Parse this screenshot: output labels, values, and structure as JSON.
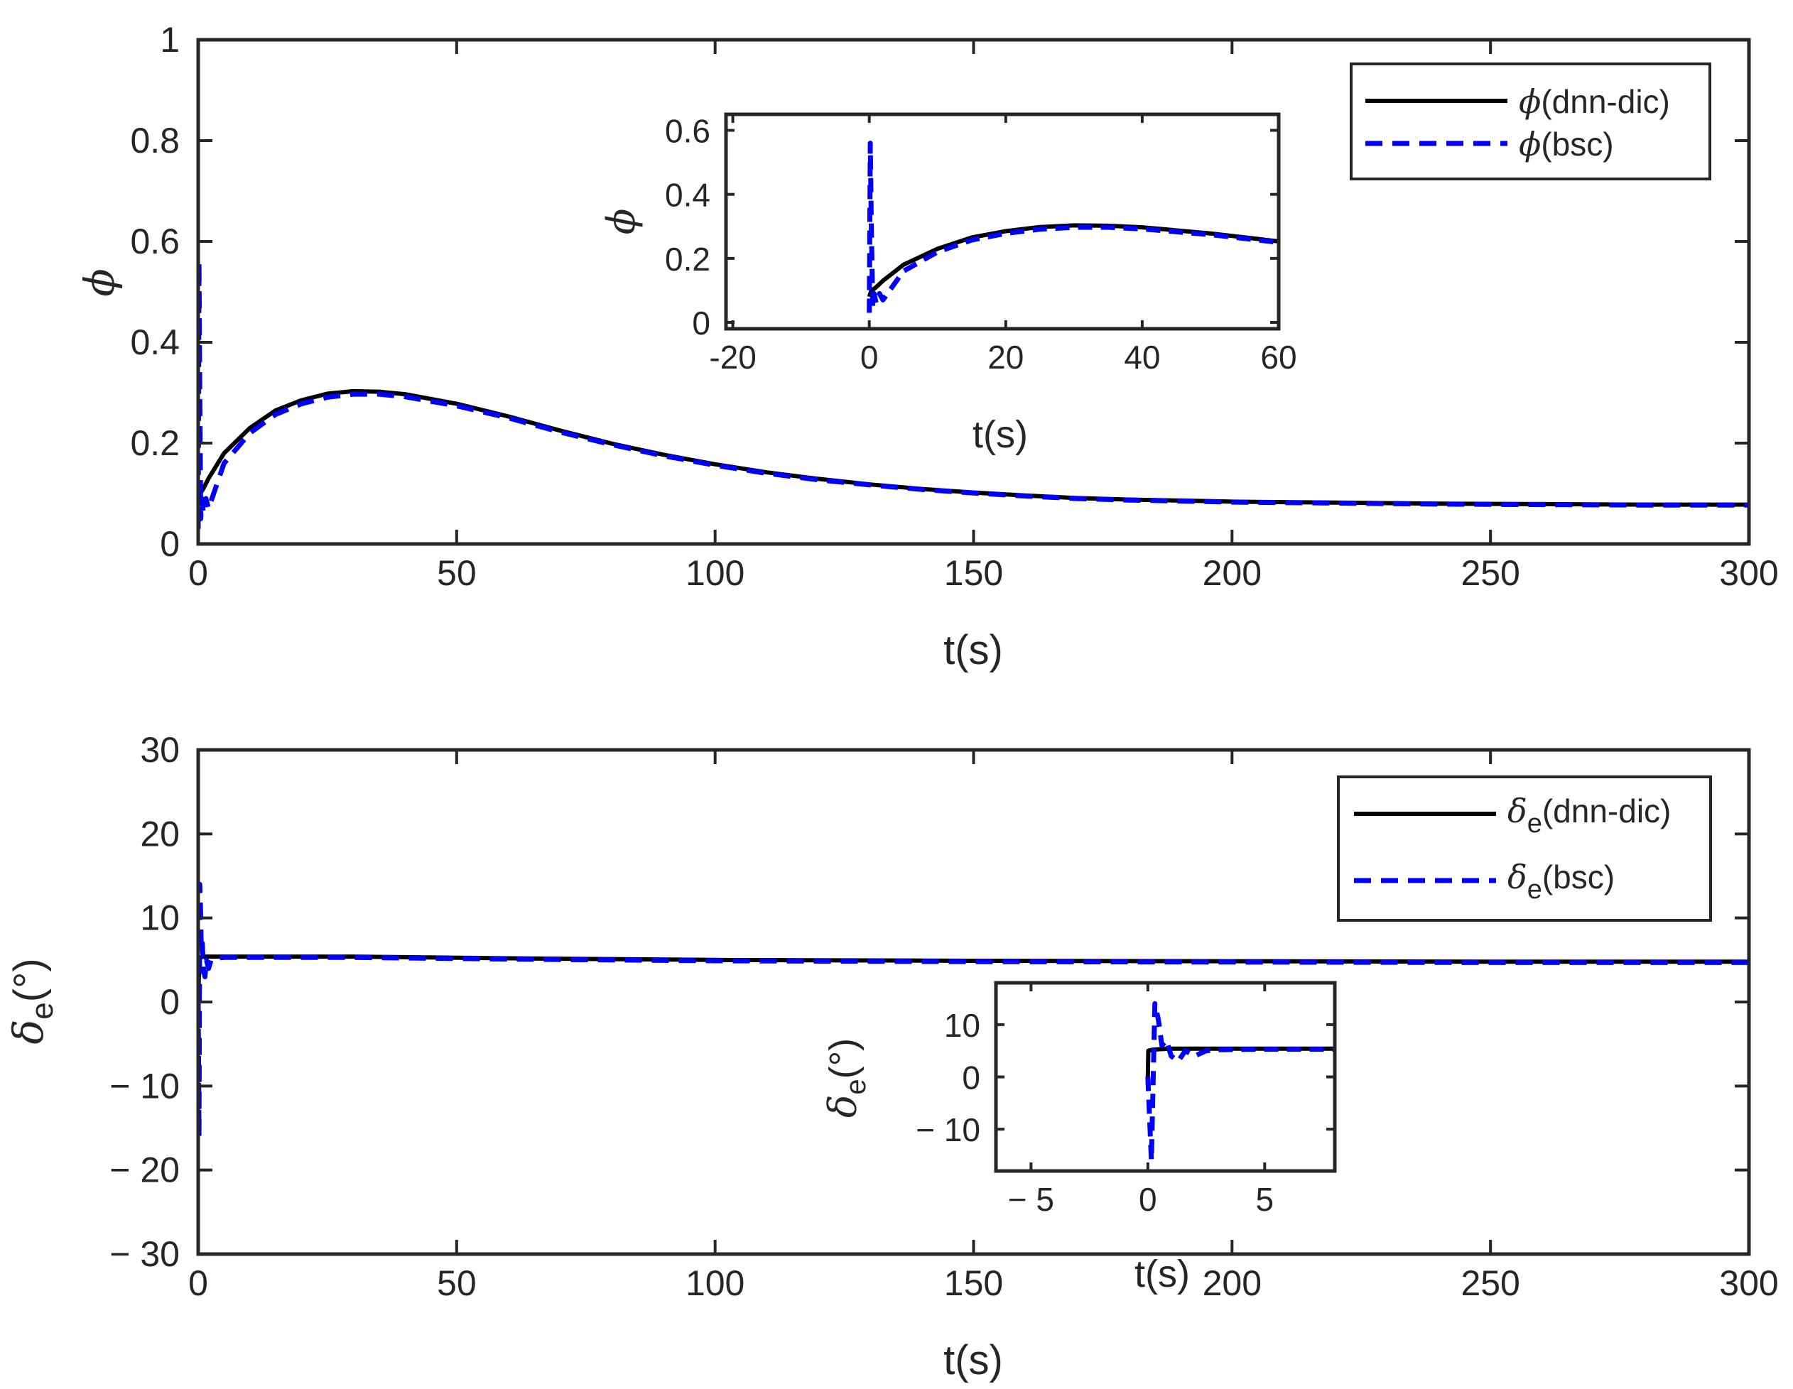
{
  "chart_data": [
    {
      "id": "top",
      "type": "line",
      "xlabel": "t(s)",
      "ylabel": "ϕ",
      "xlim": [
        0,
        300
      ],
      "ylim": [
        0,
        1
      ],
      "xticks": [
        0,
        50,
        100,
        150,
        200,
        250,
        300
      ],
      "yticks": [
        0,
        0.2,
        0.4,
        0.6,
        0.8,
        1
      ],
      "xtick_labels": [
        "0",
        "50",
        "100",
        "150",
        "200",
        "250",
        "300"
      ],
      "ytick_labels": [
        "0",
        "0.2",
        "0.4",
        "0.6",
        "0.8",
        "1"
      ],
      "grid": false,
      "legend": {
        "position": "top-right",
        "entries": [
          {
            "symbol": "ϕ",
            "text": "(dnn-dic)"
          },
          {
            "symbol": "ϕ",
            "text": "(bsc)"
          }
        ]
      },
      "series": [
        {
          "name": "ϕ(dnn-dic)",
          "color": "#000000",
          "style": "solid",
          "x": [
            0,
            0.3,
            0.7,
            1,
            2,
            5,
            10,
            15,
            20,
            25,
            30,
            35,
            40,
            50,
            60,
            70,
            80,
            90,
            100,
            110,
            120,
            130,
            140,
            150,
            160,
            170,
            180,
            190,
            200,
            220,
            240,
            260,
            280,
            300
          ],
          "y": [
            0.08,
            0.1,
            0.105,
            0.11,
            0.13,
            0.18,
            0.23,
            0.265,
            0.285,
            0.298,
            0.303,
            0.302,
            0.297,
            0.278,
            0.253,
            0.225,
            0.199,
            0.177,
            0.158,
            0.142,
            0.129,
            0.118,
            0.109,
            0.102,
            0.096,
            0.091,
            0.088,
            0.086,
            0.084,
            0.082,
            0.08,
            0.079,
            0.078,
            0.078
          ]
        },
        {
          "name": "ϕ(bsc)",
          "color": "#0000ff",
          "style": "dashed",
          "x": [
            0,
            0.15,
            0.3,
            0.5,
            0.7,
            1,
            1.5,
            2,
            3,
            5,
            10,
            15,
            20,
            25,
            30,
            35,
            40,
            50,
            60,
            70,
            80,
            90,
            100,
            110,
            120,
            130,
            140,
            150,
            160,
            170,
            180,
            190,
            200,
            220,
            240,
            260,
            280,
            300
          ],
          "y": [
            0.03,
            0.56,
            0.3,
            0.05,
            0.09,
            0.06,
            0.09,
            0.07,
            0.1,
            0.16,
            0.22,
            0.257,
            0.278,
            0.291,
            0.297,
            0.297,
            0.292,
            0.274,
            0.25,
            0.222,
            0.197,
            0.175,
            0.156,
            0.14,
            0.127,
            0.117,
            0.108,
            0.101,
            0.095,
            0.09,
            0.087,
            0.085,
            0.083,
            0.081,
            0.079,
            0.078,
            0.077,
            0.077
          ]
        }
      ]
    },
    {
      "id": "top-inset",
      "type": "line",
      "xlabel": "t(s)",
      "ylabel": "ϕ",
      "xlim": [
        -21,
        60
      ],
      "ylim": [
        -0.02,
        0.65
      ],
      "xticks": [
        -20,
        0,
        20,
        40,
        60
      ],
      "yticks": [
        0,
        0.2,
        0.4,
        0.6
      ],
      "xtick_labels": [
        "-20",
        "0",
        "20",
        "40",
        "60"
      ],
      "ytick_labels": [
        "0",
        "0.2",
        "0.4",
        "0.6"
      ],
      "grid": false,
      "series": [
        {
          "name": "ϕ(dnn-dic)",
          "color": "#000000",
          "style": "solid",
          "x": [
            0,
            0.3,
            0.7,
            1,
            2,
            5,
            10,
            15,
            20,
            25,
            30,
            35,
            40,
            50,
            60
          ],
          "y": [
            0.08,
            0.1,
            0.105,
            0.11,
            0.13,
            0.18,
            0.23,
            0.265,
            0.285,
            0.298,
            0.303,
            0.302,
            0.297,
            0.278,
            0.253
          ]
        },
        {
          "name": "ϕ(bsc)",
          "color": "#0000ff",
          "style": "dashed",
          "x": [
            0,
            0.15,
            0.3,
            0.5,
            0.7,
            1,
            1.5,
            2,
            3,
            5,
            10,
            15,
            20,
            25,
            30,
            35,
            40,
            50,
            60
          ],
          "y": [
            0.03,
            0.56,
            0.3,
            0.05,
            0.09,
            0.06,
            0.09,
            0.07,
            0.1,
            0.16,
            0.22,
            0.257,
            0.278,
            0.291,
            0.297,
            0.297,
            0.292,
            0.274,
            0.25
          ]
        }
      ]
    },
    {
      "id": "bottom",
      "type": "line",
      "xlabel": "t(s)",
      "ylabel": "δe(°)",
      "xlim": [
        0,
        300
      ],
      "ylim": [
        -30,
        30
      ],
      "xticks": [
        0,
        50,
        100,
        150,
        200,
        250,
        300
      ],
      "yticks": [
        -30,
        -20,
        -10,
        0,
        10,
        20,
        30
      ],
      "xtick_labels": [
        "0",
        "50",
        "100",
        "150",
        "200",
        "250",
        "300"
      ],
      "ytick_labels": [
        "− 30",
        "− 20",
        "− 10",
        "0",
        "10",
        "20",
        "30"
      ],
      "grid": false,
      "legend": {
        "position": "top-right",
        "entries": [
          {
            "symbol": "δ",
            "sub": "e",
            "text": "(dnn-dic)"
          },
          {
            "symbol": "δ",
            "sub": "e",
            "text": "(bsc)"
          }
        ]
      },
      "series": [
        {
          "name": "δe(dnn-dic)",
          "color": "#000000",
          "style": "solid",
          "x": [
            0,
            0.2,
            0.5,
            1,
            2,
            5,
            10,
            30,
            60,
            100,
            150,
            200,
            250,
            300
          ],
          "y": [
            0,
            5,
            5.3,
            5.4,
            5.4,
            5.4,
            5.4,
            5.4,
            5.2,
            5.0,
            4.9,
            4.85,
            4.8,
            4.8
          ]
        },
        {
          "name": "δe(bsc)",
          "color": "#0000ff",
          "style": "dashed",
          "x": [
            0,
            0.15,
            0.3,
            0.45,
            0.6,
            0.8,
            1.0,
            1.3,
            1.6,
            2.0,
            2.5,
            3,
            5,
            10,
            30,
            60,
            100,
            150,
            200,
            250,
            300
          ],
          "y": [
            0,
            -16,
            14,
            11,
            6,
            7,
            4,
            3,
            5,
            4,
            5,
            5.2,
            5.3,
            5.3,
            5.3,
            5.1,
            4.9,
            4.8,
            4.75,
            4.7,
            4.7
          ]
        }
      ]
    },
    {
      "id": "bottom-inset",
      "type": "line",
      "xlabel": "t(s)",
      "ylabel": "δe(°)",
      "xlim": [
        -6.5,
        8
      ],
      "ylim": [
        -18,
        18
      ],
      "xticks": [
        -5,
        0,
        5
      ],
      "yticks": [
        -10,
        0,
        10
      ],
      "xtick_labels": [
        "− 5",
        "0",
        "5"
      ],
      "ytick_labels": [
        "− 10",
        "0",
        "10"
      ],
      "grid": false,
      "series": [
        {
          "name": "δe(dnn-dic)",
          "color": "#000000",
          "style": "solid",
          "x": [
            0,
            0.02,
            0.2,
            0.5,
            1,
            2,
            5,
            8
          ],
          "y": [
            0,
            5,
            5.2,
            5.3,
            5.4,
            5.4,
            5.4,
            5.4
          ]
        },
        {
          "name": "δe(bsc)",
          "color": "#0000ff",
          "style": "dashed",
          "x": [
            0,
            0.15,
            0.3,
            0.45,
            0.6,
            0.8,
            1.0,
            1.3,
            1.6,
            2.0,
            2.5,
            3,
            5,
            8
          ],
          "y": [
            0,
            -16,
            14,
            11,
            6,
            7,
            4,
            3,
            5,
            4,
            5,
            5.2,
            5.3,
            5.3
          ]
        }
      ]
    }
  ]
}
